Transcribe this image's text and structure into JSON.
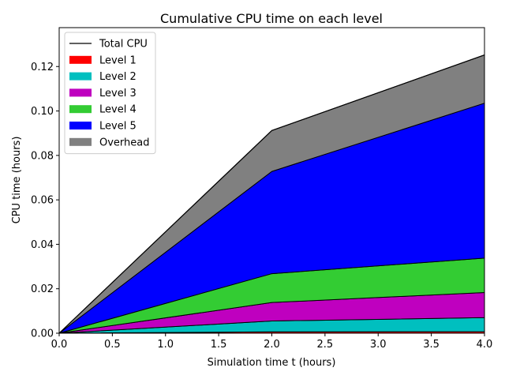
{
  "chart_data": {
    "type": "area",
    "title": "Cumulative CPU time on each level",
    "xlabel": "Simulation time t (hours)",
    "ylabel": "CPU time (hours)",
    "x": [
      0.0,
      2.0,
      4.0
    ],
    "xlim": [
      0.0,
      4.0
    ],
    "ylim": [
      0.0,
      0.1375
    ],
    "xticks": [
      "0.0",
      "0.5",
      "1.0",
      "1.5",
      "2.0",
      "2.5",
      "3.0",
      "3.5",
      "4.0"
    ],
    "yticks": [
      "0.00",
      "0.02",
      "0.04",
      "0.06",
      "0.08",
      "0.10",
      "0.12"
    ],
    "stacked": true,
    "legend_position": "top-left",
    "total_line": {
      "name": "Total CPU",
      "color": "#000000",
      "values": [
        0.0,
        0.0912,
        0.1252
      ]
    },
    "series": [
      {
        "name": "Level 1",
        "color": "#ff0000",
        "values": [
          0.0,
          0.0006,
          0.0007
        ]
      },
      {
        "name": "Level 2",
        "color": "#00bfbf",
        "values": [
          0.0,
          0.0049,
          0.0063
        ]
      },
      {
        "name": "Level 3",
        "color": "#bf00bf",
        "values": [
          0.0,
          0.0083,
          0.0113
        ]
      },
      {
        "name": "Level 4",
        "color": "#33cc33",
        "values": [
          0.0,
          0.013,
          0.0155
        ]
      },
      {
        "name": "Level 5",
        "color": "#0000ff",
        "values": [
          0.0,
          0.046,
          0.0697
        ]
      },
      {
        "name": "Overhead",
        "color": "#808080",
        "values": [
          0.0,
          0.0184,
          0.0217
        ]
      }
    ]
  }
}
